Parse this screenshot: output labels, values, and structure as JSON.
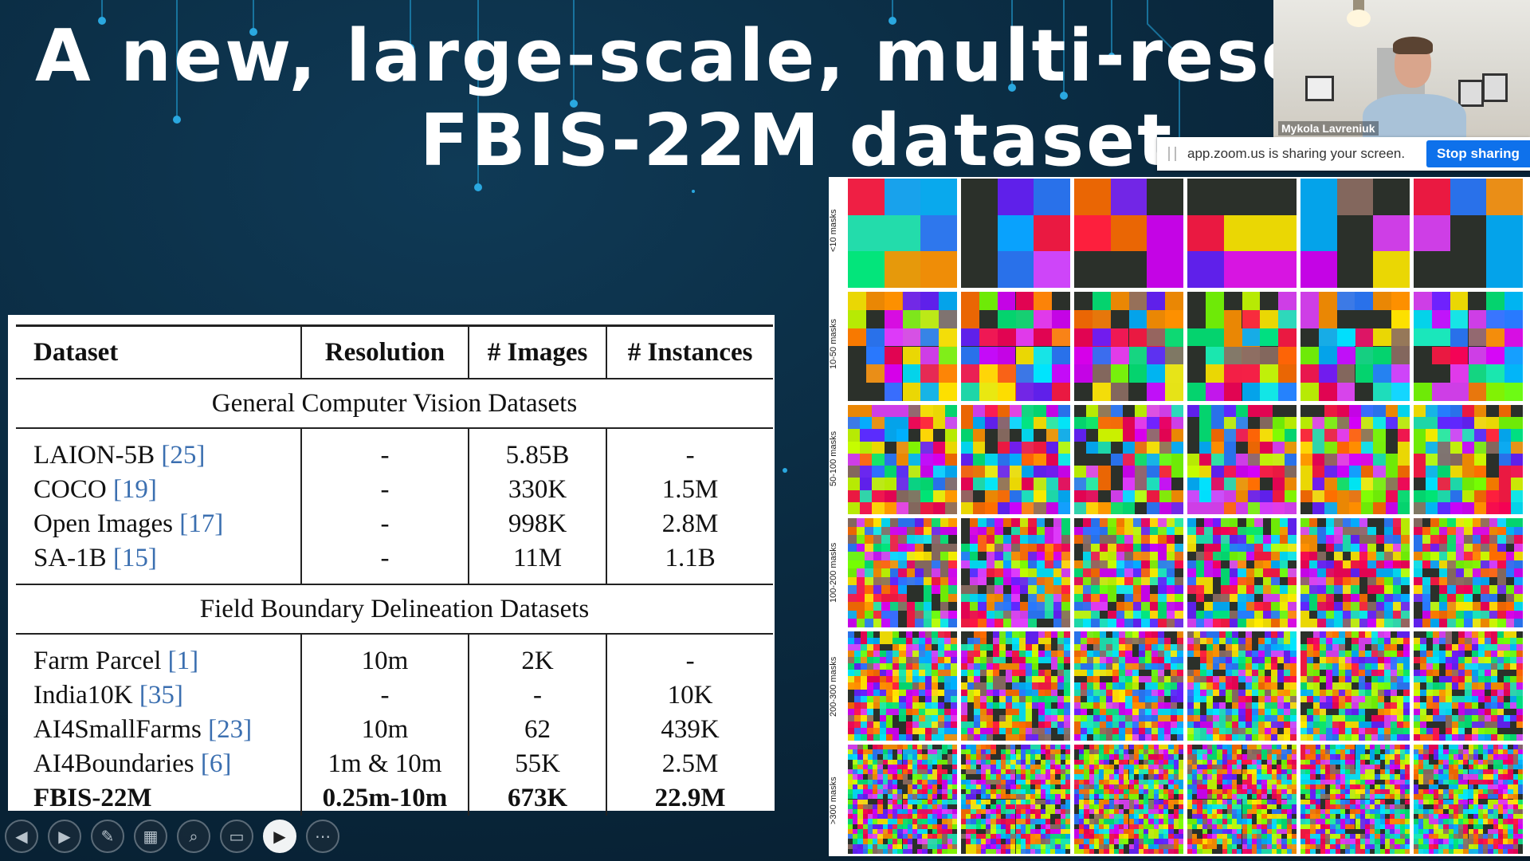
{
  "slide": {
    "title_line1": "A new, large-scale, multi-resol",
    "title_line2": "FBIS-22M dataset"
  },
  "table": {
    "headers": [
      "Dataset",
      "Resolution",
      "# Images",
      "# Instances"
    ],
    "group1_title": "General Computer Vision Datasets",
    "group1_rows": [
      {
        "name": "LAION-5B ",
        "ref": "[25]",
        "resolution": "-",
        "images": "5.85B",
        "instances": "-"
      },
      {
        "name": "COCO ",
        "ref": "[19]",
        "resolution": "-",
        "images": "330K",
        "instances": "1.5M"
      },
      {
        "name": "Open Images ",
        "ref": "[17]",
        "resolution": "-",
        "images": "998K",
        "instances": "2.8M"
      },
      {
        "name": "SA-1B ",
        "ref": "[15]",
        "resolution": "-",
        "images": "11M",
        "instances": "1.1B"
      }
    ],
    "group2_title": "Field Boundary Delineation Datasets",
    "group2_rows": [
      {
        "name": "Farm Parcel ",
        "ref": "[1]",
        "resolution": "10m",
        "images": "2K",
        "instances": "-"
      },
      {
        "name": "India10K ",
        "ref": "[35]",
        "resolution": "-",
        "images": "-",
        "instances": "10K"
      },
      {
        "name": "AI4SmallFarms ",
        "ref": "[23]",
        "resolution": "10m",
        "images": "62",
        "instances": "439K"
      },
      {
        "name": "AI4Boundaries ",
        "ref": "[6]",
        "resolution": "1m & 10m",
        "images": "55K",
        "instances": "2.5M"
      },
      {
        "name": "FBIS-22M",
        "ref": "",
        "resolution": "0.25m-10m",
        "images": "673K",
        "instances": "22.9M"
      }
    ]
  },
  "grid": {
    "row_labels": [
      "<10 masks",
      "10-50 masks",
      "50-100 masks",
      "100-200 masks",
      "200-300 masks",
      ">300 masks"
    ]
  },
  "zoom": {
    "speaker_name": "Mykola Lavreniuk",
    "share_text": "app.zoom.us is sharing your screen.",
    "stop_label": "Stop sharing"
  },
  "toolbar": {
    "buttons": [
      {
        "name": "previous-slide-icon",
        "glyph": "◀"
      },
      {
        "name": "next-slide-icon",
        "glyph": "▶"
      },
      {
        "name": "pen-icon",
        "glyph": "✎"
      },
      {
        "name": "slides-grid-icon",
        "glyph": "▦"
      },
      {
        "name": "zoom-magnifier-icon",
        "glyph": "⌕"
      },
      {
        "name": "subtitles-icon",
        "glyph": "▭"
      },
      {
        "name": "camera-icon",
        "glyph": "▶"
      },
      {
        "name": "more-options-icon",
        "glyph": "⋯"
      }
    ]
  }
}
